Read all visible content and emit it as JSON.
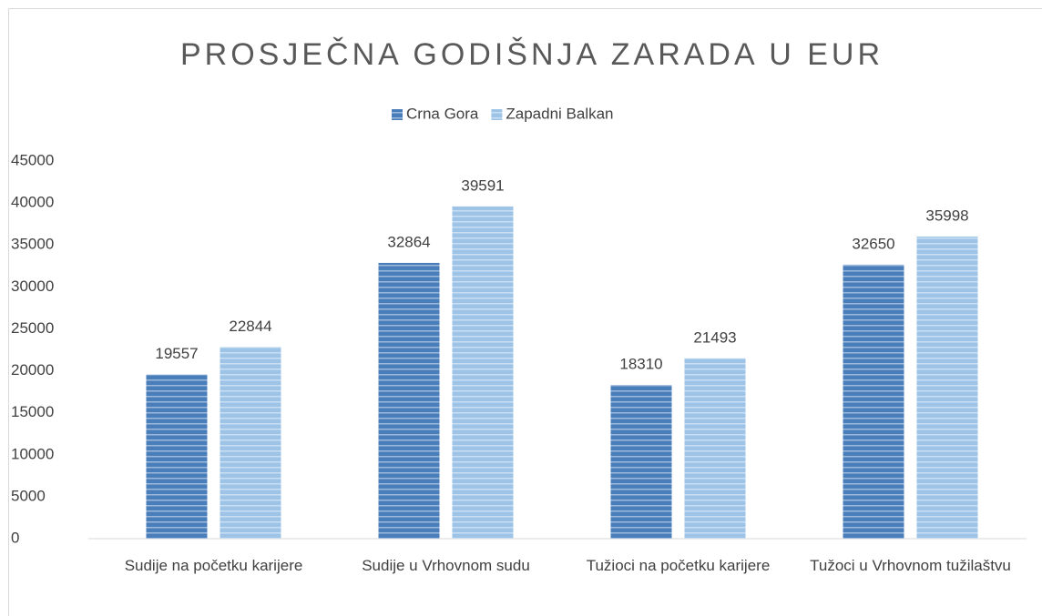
{
  "chart_data": {
    "type": "bar",
    "title": "PROSJEČNA GODIŠNJA ZARADA U EUR",
    "categories": [
      "Sudije na početku karijere",
      "Sudije u Vrhovnom sudu",
      "Tužioci na početku karijere",
      "Tužoci u Vrhovnom tužilaštvu"
    ],
    "series": [
      {
        "name": "Crna Gora",
        "color": "#4a7ebb",
        "values": [
          19557,
          32864,
          18310,
          32650
        ]
      },
      {
        "name": "Zapadni Balkan",
        "color": "#9dc3e6",
        "values": [
          22844,
          39591,
          21493,
          35998
        ]
      }
    ],
    "ylim": [
      0,
      45000
    ],
    "yticks": [
      0,
      5000,
      10000,
      15000,
      20000,
      25000,
      30000,
      35000,
      40000,
      45000
    ],
    "grid": false,
    "legend": "top"
  }
}
